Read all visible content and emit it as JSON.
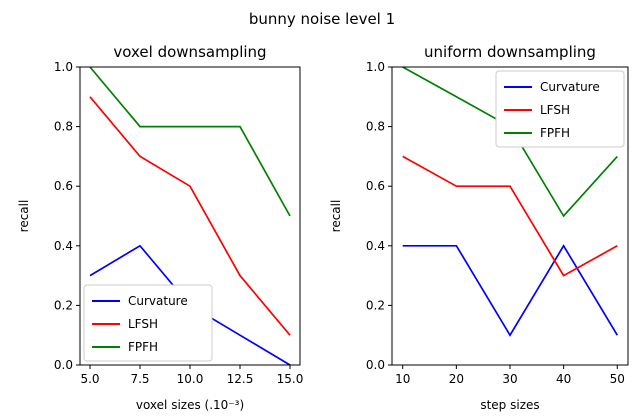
{
  "figure": {
    "suptitle": "bunny noise level 1"
  },
  "chart_data": [
    {
      "type": "line",
      "title": "voxel downsampling",
      "xlabel": "voxel sizes (.10⁻³)",
      "ylabel": "recall",
      "x": [
        5.0,
        7.5,
        10.0,
        12.5,
        15.0
      ],
      "xticks": [
        "5.0",
        "7.5",
        "10.0",
        "12.5",
        "15.0"
      ],
      "yticks": [
        "0.0",
        "0.2",
        "0.4",
        "0.6",
        "0.8",
        "1.0"
      ],
      "xlim": [
        4.5,
        15.5
      ],
      "ylim": [
        0.0,
        1.0
      ],
      "grid": false,
      "legend_position": "lower-left",
      "series": [
        {
          "name": "Curvature",
          "color": "#0000ff",
          "values": [
            0.3,
            0.4,
            0.2,
            0.1,
            0.0
          ]
        },
        {
          "name": "LFSH",
          "color": "#ff0000",
          "values": [
            0.9,
            0.7,
            0.6,
            0.3,
            0.1
          ]
        },
        {
          "name": "FPFH",
          "color": "#008000",
          "values": [
            1.0,
            0.8,
            0.8,
            0.8,
            0.5
          ]
        }
      ]
    },
    {
      "type": "line",
      "title": "uniform downsampling",
      "xlabel": "step sizes",
      "ylabel": "recall",
      "x": [
        10,
        20,
        30,
        40,
        50
      ],
      "xticks": [
        "10",
        "20",
        "30",
        "40",
        "50"
      ],
      "yticks": [
        "0.0",
        "0.2",
        "0.4",
        "0.6",
        "0.8",
        "1.0"
      ],
      "xlim": [
        8,
        52
      ],
      "ylim": [
        0.0,
        1.0
      ],
      "grid": false,
      "legend_position": "upper-right",
      "series": [
        {
          "name": "Curvature",
          "color": "#0000ff",
          "values": [
            0.4,
            0.4,
            0.1,
            0.4,
            0.1
          ]
        },
        {
          "name": "LFSH",
          "color": "#ff0000",
          "values": [
            0.7,
            0.6,
            0.6,
            0.3,
            0.4
          ]
        },
        {
          "name": "FPFH",
          "color": "#008000",
          "values": [
            1.0,
            0.9,
            0.8,
            0.5,
            0.7
          ]
        }
      ]
    }
  ]
}
